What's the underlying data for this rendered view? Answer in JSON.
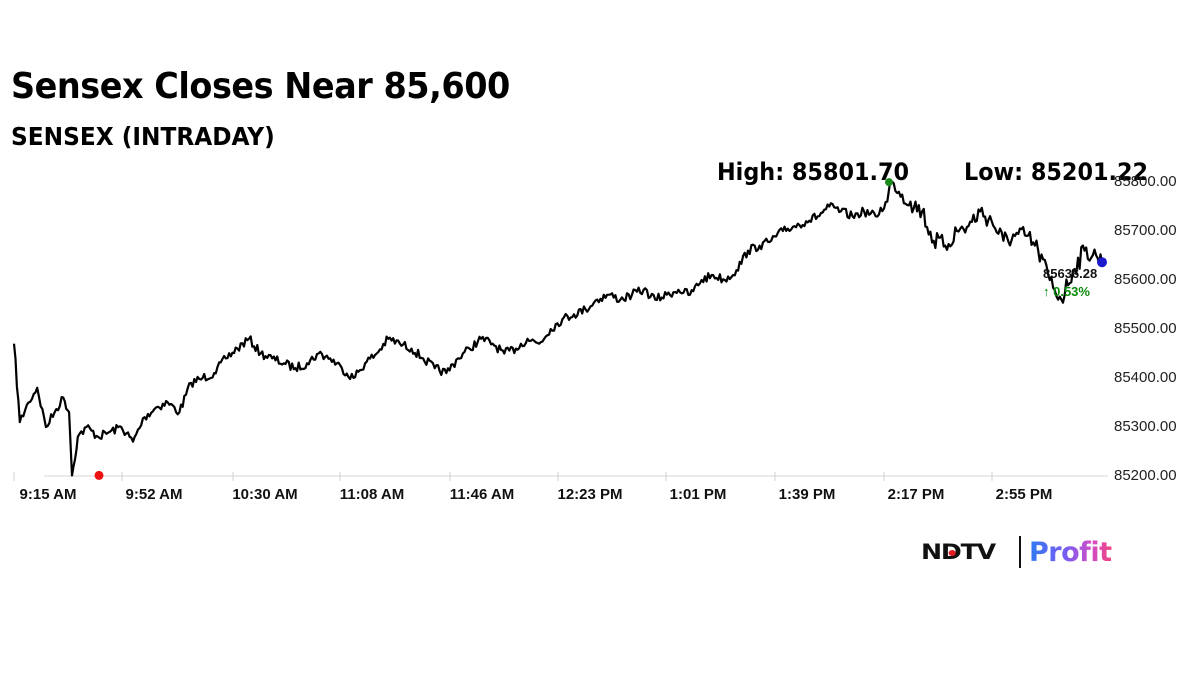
{
  "header": {
    "title": "Sensex Closes Near 85,600",
    "subtitle": "SENSEX (INTRADAY)"
  },
  "stats": {
    "high_label": "High: 85801.70",
    "low_label": "Low: 85201.22",
    "last_value": "85636.28",
    "change": "↑ 0.53%"
  },
  "colors": {
    "line": "#000000",
    "high_marker": "#1a8a1a",
    "low_marker": "#ee1111",
    "last_marker": "#1a1acc",
    "change_up": "#0a8a0a",
    "axis": "#d0d0d0"
  },
  "logo": {
    "brand": "NDTV",
    "product": "Profit"
  },
  "chart_data": {
    "type": "line",
    "title": "Sensex Closes Near 85,600",
    "subtitle": "SENSEX (INTRADAY)",
    "xlabel": "",
    "ylabel": "",
    "ylim": [
      85200,
      85800
    ],
    "y_ticks": [
      "85800.00",
      "85700.00",
      "85600.00",
      "85500.00",
      "85400.00",
      "85300.00",
      "85200.00"
    ],
    "x_ticks": [
      "9:15 AM",
      "9:52 AM",
      "10:30 AM",
      "11:08 AM",
      "11:46 AM",
      "12:23 PM",
      "1:01 PM",
      "1:39 PM",
      "2:17 PM",
      "2:55 PM"
    ],
    "grid": false,
    "legend": null,
    "annotations": {
      "high": {
        "label": "High: 85801.70",
        "value": 85801.7,
        "time": "2:17 PM"
      },
      "low": {
        "label": "Low: 85201.22",
        "value": 85201.22,
        "time": "9:35 AM"
      },
      "last": {
        "value": 85636.28,
        "change_pct": "0.53%",
        "direction": "up"
      }
    },
    "series": [
      {
        "name": "SENSEX",
        "x": [
          "9:15",
          "9:17",
          "9:20",
          "9:23",
          "9:26",
          "9:29",
          "9:32",
          "9:34",
          "9:35",
          "9:37",
          "9:40",
          "9:44",
          "9:48",
          "9:52",
          "9:56",
          "10:00",
          "10:04",
          "10:08",
          "10:12",
          "10:16",
          "10:20",
          "10:24",
          "10:28",
          "10:32",
          "10:36",
          "10:40",
          "10:44",
          "10:48",
          "10:52",
          "10:56",
          "11:00",
          "11:04",
          "11:08",
          "11:12",
          "11:16",
          "11:20",
          "11:24",
          "11:28",
          "11:32",
          "11:36",
          "11:40",
          "11:44",
          "11:48",
          "11:52",
          "11:56",
          "12:00",
          "12:04",
          "12:08",
          "12:12",
          "12:16",
          "12:20",
          "12:24",
          "12:28",
          "12:32",
          "12:36",
          "12:40",
          "12:44",
          "12:48",
          "12:52",
          "12:56",
          "13:00",
          "13:04",
          "13:08",
          "13:12",
          "13:16",
          "13:20",
          "13:24",
          "13:28",
          "13:32",
          "13:36",
          "13:40",
          "13:44",
          "13:48",
          "13:52",
          "13:56",
          "14:00",
          "14:04",
          "14:08",
          "14:12",
          "14:16",
          "14:17",
          "14:20",
          "14:24",
          "14:28",
          "14:32",
          "14:36",
          "14:40",
          "14:44",
          "14:48",
          "14:52",
          "14:56",
          "15:00",
          "15:04",
          "15:08",
          "15:12",
          "15:16",
          "15:20",
          "15:24",
          "15:28",
          "15:30"
        ],
        "values": [
          85470,
          85310,
          85350,
          85380,
          85300,
          85330,
          85360,
          85330,
          85201,
          85280,
          85300,
          85280,
          85290,
          85300,
          85270,
          85320,
          85340,
          85350,
          85330,
          85390,
          85400,
          85410,
          85440,
          85460,
          85480,
          85450,
          85440,
          85430,
          85420,
          85430,
          85450,
          85440,
          85420,
          85400,
          85430,
          85450,
          85480,
          85470,
          85460,
          85440,
          85420,
          85410,
          85440,
          85460,
          85480,
          85470,
          85450,
          85460,
          85480,
          85470,
          85500,
          85520,
          85530,
          85540,
          85560,
          85570,
          85560,
          85570,
          85580,
          85560,
          85570,
          85580,
          85570,
          85600,
          85610,
          85600,
          85620,
          85660,
          85670,
          85680,
          85700,
          85710,
          85720,
          85730,
          85750,
          85740,
          85730,
          85740,
          85730,
          85760,
          85801.7,
          85780,
          85760,
          85740,
          85680,
          85670,
          85700,
          85710,
          85740,
          85720,
          85680,
          85690,
          85690,
          85660,
          85600,
          85560,
          85620,
          85660,
          85650,
          85636.28
        ]
      }
    ]
  }
}
